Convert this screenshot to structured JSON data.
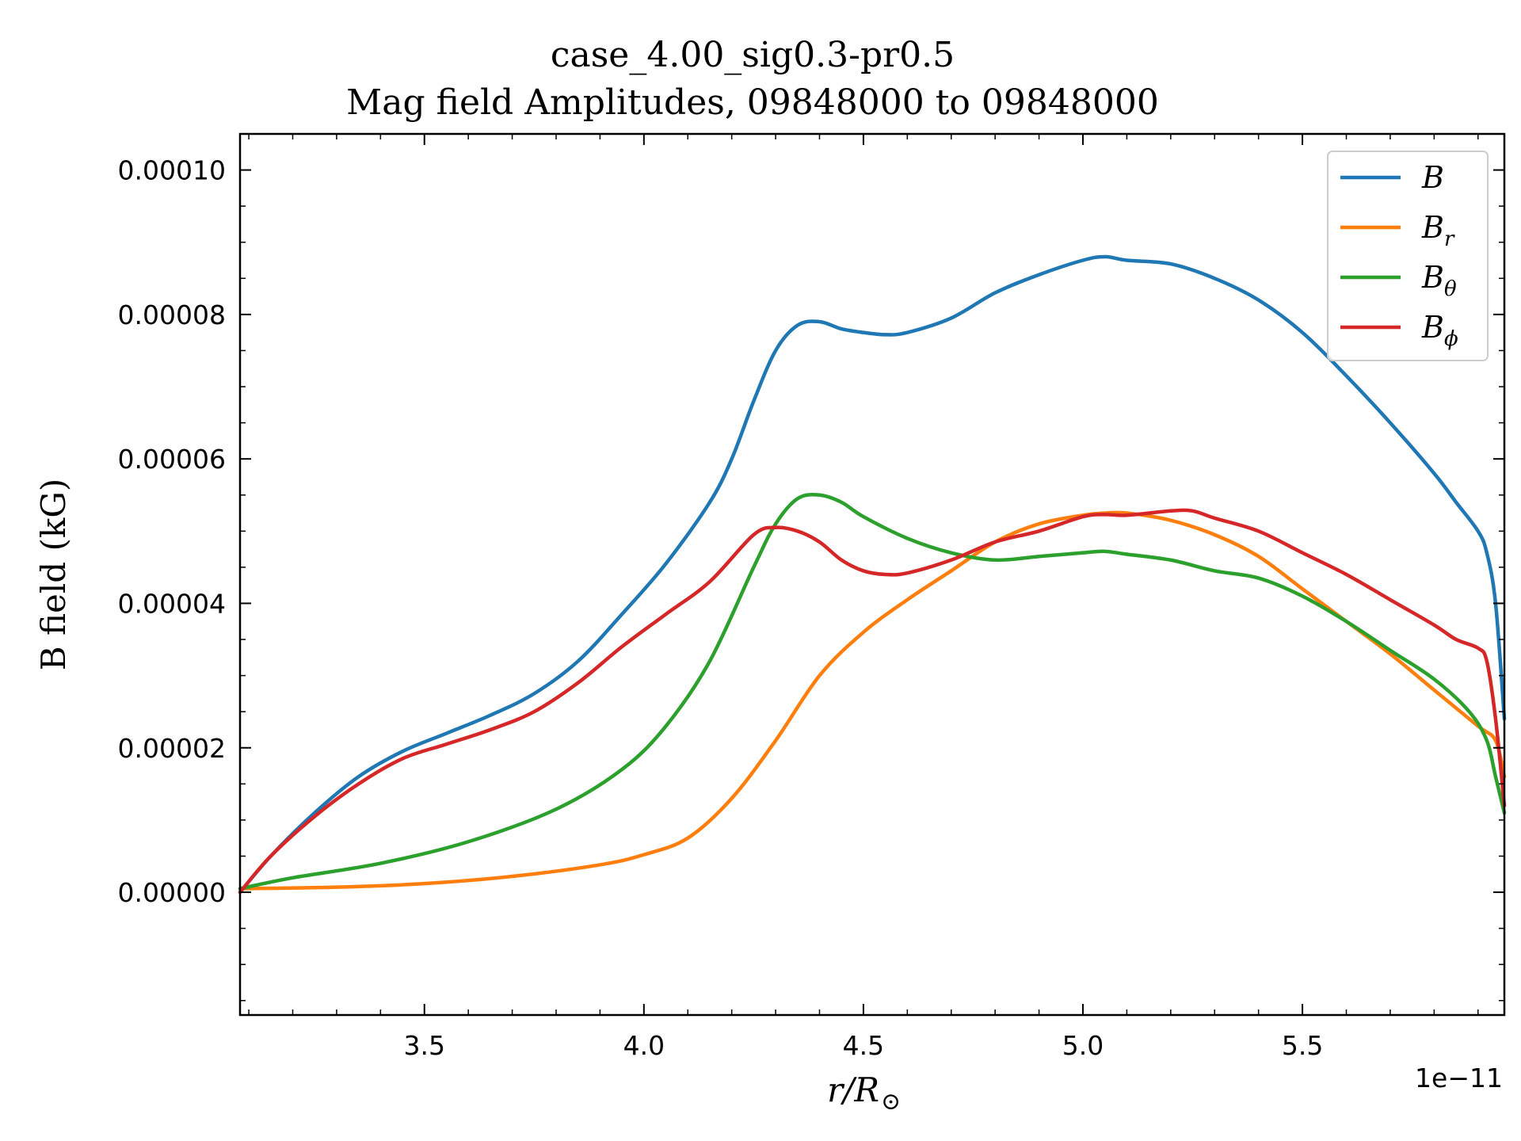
{
  "chart_data": {
    "type": "line",
    "title": "case_4.00_sig0.3-pr0.5",
    "subtitle": "Mag field Amplitudes, 09848000 to 09848000",
    "xlabel_main": "r/R",
    "xlabel_sub": "⊙",
    "ylabel": "B field (kG)",
    "x_offset_text": "1e−11",
    "xlim": [
      3.08,
      5.96
    ],
    "ylim": [
      -1.7e-05,
      0.000105
    ],
    "x_ticks": [
      {
        "value": 3.5,
        "label": "3.5"
      },
      {
        "value": 4.0,
        "label": "4.0"
      },
      {
        "value": 4.5,
        "label": "4.5"
      },
      {
        "value": 5.0,
        "label": "5.0"
      },
      {
        "value": 5.5,
        "label": "5.5"
      }
    ],
    "y_ticks": [
      {
        "value": 0.0,
        "label": "0.00000"
      },
      {
        "value": 2e-05,
        "label": "0.00002"
      },
      {
        "value": 4e-05,
        "label": "0.00004"
      },
      {
        "value": 6e-05,
        "label": "0.00006"
      },
      {
        "value": 8e-05,
        "label": "0.00008"
      },
      {
        "value": 0.0001,
        "label": "0.00010"
      }
    ],
    "legend_position": "top-right",
    "series": [
      {
        "name": "B",
        "name_sub": "",
        "color": "#1f77b4",
        "points": [
          [
            3.08,
            0.0
          ],
          [
            3.15,
            5e-06
          ],
          [
            3.25,
            1.1e-05
          ],
          [
            3.35,
            1.6e-05
          ],
          [
            3.45,
            1.95e-05
          ],
          [
            3.55,
            2.2e-05
          ],
          [
            3.65,
            2.45e-05
          ],
          [
            3.75,
            2.75e-05
          ],
          [
            3.85,
            3.2e-05
          ],
          [
            3.95,
            3.85e-05
          ],
          [
            4.05,
            4.55e-05
          ],
          [
            4.15,
            5.4e-05
          ],
          [
            4.2,
            6e-05
          ],
          [
            4.25,
            6.8e-05
          ],
          [
            4.3,
            7.5e-05
          ],
          [
            4.35,
            7.85e-05
          ],
          [
            4.4,
            7.9e-05
          ],
          [
            4.45,
            7.8e-05
          ],
          [
            4.5,
            7.75e-05
          ],
          [
            4.55,
            7.72e-05
          ],
          [
            4.6,
            7.75e-05
          ],
          [
            4.7,
            7.95e-05
          ],
          [
            4.8,
            8.3e-05
          ],
          [
            4.9,
            8.55e-05
          ],
          [
            5.0,
            8.75e-05
          ],
          [
            5.05,
            8.8e-05
          ],
          [
            5.1,
            8.75e-05
          ],
          [
            5.2,
            8.7e-05
          ],
          [
            5.3,
            8.5e-05
          ],
          [
            5.4,
            8.2e-05
          ],
          [
            5.5,
            7.75e-05
          ],
          [
            5.6,
            7.15e-05
          ],
          [
            5.7,
            6.5e-05
          ],
          [
            5.8,
            5.8e-05
          ],
          [
            5.85,
            5.4e-05
          ],
          [
            5.9,
            5e-05
          ],
          [
            5.92,
            4.7e-05
          ],
          [
            5.94,
            4e-05
          ],
          [
            5.96,
            2.4e-05
          ]
        ]
      },
      {
        "name": "B",
        "name_sub": "r",
        "color": "#ff7f0e",
        "points": [
          [
            3.08,
            5e-07
          ],
          [
            3.3,
            7e-07
          ],
          [
            3.5,
            1.2e-06
          ],
          [
            3.7,
            2.2e-06
          ],
          [
            3.9,
            3.8e-06
          ],
          [
            4.0,
            5.2e-06
          ],
          [
            4.1,
            7.5e-06
          ],
          [
            4.2,
            1.3e-05
          ],
          [
            4.3,
            2.1e-05
          ],
          [
            4.4,
            3e-05
          ],
          [
            4.5,
            3.6e-05
          ],
          [
            4.6,
            4.05e-05
          ],
          [
            4.7,
            4.45e-05
          ],
          [
            4.8,
            4.85e-05
          ],
          [
            4.9,
            5.1e-05
          ],
          [
            5.0,
            5.22e-05
          ],
          [
            5.05,
            5.25e-05
          ],
          [
            5.1,
            5.25e-05
          ],
          [
            5.2,
            5.15e-05
          ],
          [
            5.3,
            4.95e-05
          ],
          [
            5.4,
            4.65e-05
          ],
          [
            5.5,
            4.2e-05
          ],
          [
            5.6,
            3.75e-05
          ],
          [
            5.7,
            3.3e-05
          ],
          [
            5.8,
            2.8e-05
          ],
          [
            5.9,
            2.3e-05
          ],
          [
            5.94,
            2.1e-05
          ],
          [
            5.96,
            1.6e-05
          ]
        ]
      },
      {
        "name": "B",
        "name_sub": "θ",
        "color": "#2ca02c",
        "points": [
          [
            3.08,
            5e-07
          ],
          [
            3.2,
            2e-06
          ],
          [
            3.4,
            4e-06
          ],
          [
            3.6,
            7e-06
          ],
          [
            3.8,
            1.15e-05
          ],
          [
            3.95,
            1.7e-05
          ],
          [
            4.05,
            2.3e-05
          ],
          [
            4.15,
            3.2e-05
          ],
          [
            4.25,
            4.5e-05
          ],
          [
            4.3,
            5.1e-05
          ],
          [
            4.35,
            5.45e-05
          ],
          [
            4.4,
            5.5e-05
          ],
          [
            4.45,
            5.4e-05
          ],
          [
            4.5,
            5.2e-05
          ],
          [
            4.6,
            4.9e-05
          ],
          [
            4.7,
            4.7e-05
          ],
          [
            4.8,
            4.6e-05
          ],
          [
            4.9,
            4.65e-05
          ],
          [
            5.0,
            4.7e-05
          ],
          [
            5.05,
            4.72e-05
          ],
          [
            5.1,
            4.68e-05
          ],
          [
            5.2,
            4.6e-05
          ],
          [
            5.3,
            4.45e-05
          ],
          [
            5.4,
            4.35e-05
          ],
          [
            5.5,
            4.1e-05
          ],
          [
            5.6,
            3.75e-05
          ],
          [
            5.7,
            3.35e-05
          ],
          [
            5.8,
            2.95e-05
          ],
          [
            5.88,
            2.5e-05
          ],
          [
            5.92,
            2.1e-05
          ],
          [
            5.94,
            1.6e-05
          ],
          [
            5.96,
            1.1e-05
          ]
        ]
      },
      {
        "name": "B",
        "name_sub": "ϕ",
        "color": "#d62728",
        "points": [
          [
            3.08,
            0.0
          ],
          [
            3.15,
            5e-06
          ],
          [
            3.25,
            1.05e-05
          ],
          [
            3.35,
            1.5e-05
          ],
          [
            3.45,
            1.85e-05
          ],
          [
            3.55,
            2.05e-05
          ],
          [
            3.65,
            2.25e-05
          ],
          [
            3.75,
            2.5e-05
          ],
          [
            3.85,
            2.9e-05
          ],
          [
            3.95,
            3.4e-05
          ],
          [
            4.05,
            3.85e-05
          ],
          [
            4.15,
            4.3e-05
          ],
          [
            4.25,
            4.95e-05
          ],
          [
            4.3,
            5.05e-05
          ],
          [
            4.35,
            5e-05
          ],
          [
            4.4,
            4.85e-05
          ],
          [
            4.45,
            4.6e-05
          ],
          [
            4.5,
            4.45e-05
          ],
          [
            4.55,
            4.4e-05
          ],
          [
            4.6,
            4.42e-05
          ],
          [
            4.7,
            4.6e-05
          ],
          [
            4.8,
            4.85e-05
          ],
          [
            4.9,
            5e-05
          ],
          [
            5.0,
            5.2e-05
          ],
          [
            5.05,
            5.23e-05
          ],
          [
            5.1,
            5.22e-05
          ],
          [
            5.2,
            5.28e-05
          ],
          [
            5.25,
            5.28e-05
          ],
          [
            5.3,
            5.18e-05
          ],
          [
            5.4,
            5e-05
          ],
          [
            5.5,
            4.7e-05
          ],
          [
            5.6,
            4.4e-05
          ],
          [
            5.7,
            4.05e-05
          ],
          [
            5.8,
            3.7e-05
          ],
          [
            5.85,
            3.5e-05
          ],
          [
            5.9,
            3.38e-05
          ],
          [
            5.92,
            3.2e-05
          ],
          [
            5.94,
            2.4e-05
          ],
          [
            5.96,
            1.2e-05
          ]
        ]
      }
    ]
  }
}
